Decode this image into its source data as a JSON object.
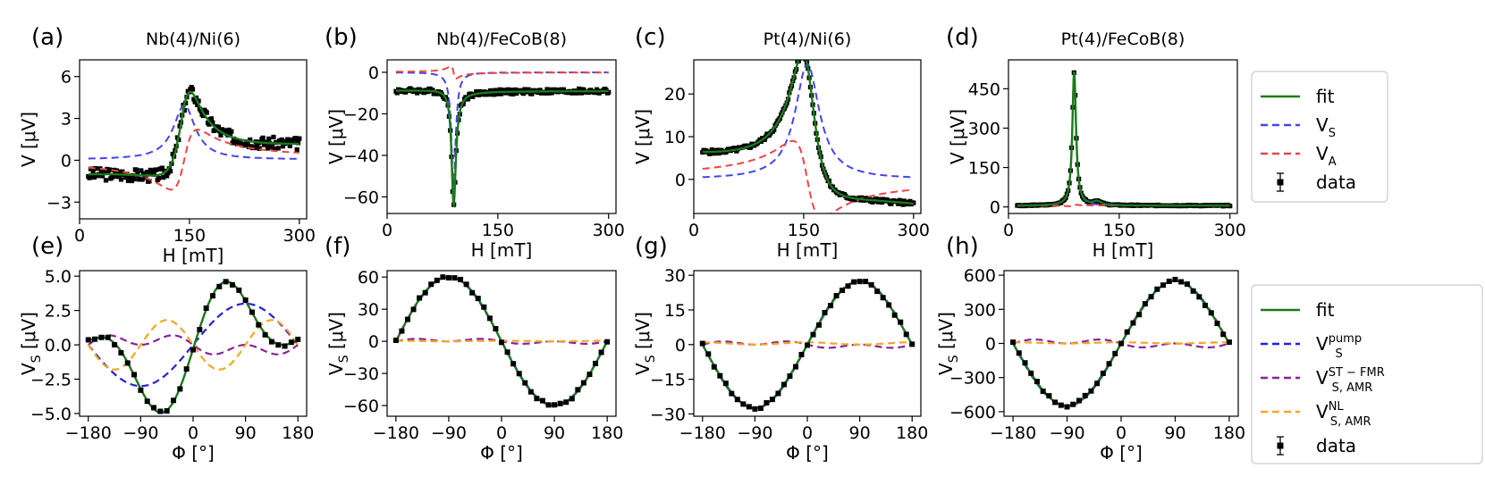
{
  "colors": {
    "fit": "#1a7a1a",
    "vs": "#4444ee",
    "va": "#ee4444",
    "pump": "#2222dd",
    "st": "#882299",
    "nl": "#f5a623",
    "data": "#000000"
  },
  "legend_top": {
    "items": [
      {
        "key": "fit",
        "label": "fit"
      },
      {
        "key": "vs",
        "label": "V",
        "sub": "S"
      },
      {
        "key": "va",
        "label": "V",
        "sub": "A"
      },
      {
        "key": "data",
        "label": "data"
      }
    ]
  },
  "legend_bottom": {
    "items": [
      {
        "key": "fit",
        "label": "fit"
      },
      {
        "key": "pump",
        "label": "V",
        "sup": "pump",
        "sub": "S"
      },
      {
        "key": "st",
        "label": "V",
        "sup": "ST − FMR",
        "sub": "S, AMR"
      },
      {
        "key": "nl",
        "label": "V",
        "sup": "NL",
        "sub": "S, AMR"
      },
      {
        "key": "data",
        "label": "data"
      }
    ]
  },
  "chart_data": [
    {
      "id": "a",
      "panel_label": "(a)",
      "title": "Nb(4)/Ni(6)",
      "type": "line",
      "xlabel": "H [mT]",
      "ylabel": "V [μV]",
      "xlim": [
        0,
        310
      ],
      "ylim": [
        -4.2,
        7.2
      ],
      "xticks": [
        0,
        150,
        300
      ],
      "xticklabels": [
        "0",
        "150",
        "300"
      ],
      "yticks": [
        -3,
        0,
        3,
        6
      ],
      "yticklabels": [
        "−3",
        "0",
        "3",
        "6"
      ],
      "model": {
        "kind": "lorentz",
        "H0": 143,
        "dH": 18,
        "S": 3.9,
        "A": -4.3,
        "off": 0.05,
        "slope": 0.004,
        "xmin": 12,
        "xmax": 300
      },
      "data_noise": 0.45
    },
    {
      "id": "b",
      "panel_label": "(b)",
      "title": "Nb(4)/FeCoB(8)",
      "type": "line",
      "xlabel": "H [mT]",
      "ylabel": "V [μV]",
      "xlim": [
        0,
        310
      ],
      "ylim": [
        -68,
        6
      ],
      "xticks": [
        0,
        150,
        300
      ],
      "xticklabels": [
        "0",
        "150",
        "300"
      ],
      "yticks": [
        -60,
        -40,
        -20,
        0
      ],
      "yticklabels": [
        "−60",
        "−40",
        "−20",
        "0"
      ],
      "model": {
        "kind": "lorentz",
        "H0": 90,
        "dH": 3.5,
        "S": -55,
        "A": 6,
        "off": -9,
        "slope": 0,
        "xmin": 12,
        "xmax": 300,
        "sva_offset": 9
      },
      "data_noise": 1.2
    },
    {
      "id": "c",
      "panel_label": "(c)",
      "title": "Pt(4)/Ni(6)",
      "type": "line",
      "xlabel": "H [mT]",
      "ylabel": "V [μV]",
      "xlim": [
        0,
        310
      ],
      "ylim": [
        -8,
        28
      ],
      "xticks": [
        0,
        150,
        300
      ],
      "xticklabels": [
        "0",
        "150",
        "300"
      ],
      "yticks": [
        0,
        10,
        20
      ],
      "yticklabels": [
        "0",
        "10",
        "20"
      ],
      "model": {
        "kind": "lorentz",
        "H0": 155,
        "dH": 20,
        "S": 27,
        "A": 18,
        "off": 0,
        "slope": 0,
        "xmin": 12,
        "xmax": 300,
        "fit_tilt": -0.025
      },
      "data_noise": 0.5
    },
    {
      "id": "d",
      "panel_label": "(d)",
      "title": "Pt(4)/FeCoB(8)",
      "type": "line",
      "xlabel": "H [mT]",
      "ylabel": "V [μV]",
      "xlim": [
        0,
        310
      ],
      "ylim": [
        -25,
        560
      ],
      "xticks": [
        0,
        150,
        300
      ],
      "xticklabels": [
        "0",
        "150",
        "300"
      ],
      "yticks": [
        0,
        150,
        300,
        450
      ],
      "yticklabels": [
        "0",
        "150",
        "300",
        "450"
      ],
      "model": {
        "kind": "lorentz",
        "H0": 89,
        "dH": 3,
        "S": 510,
        "A": -6,
        "off": 5,
        "slope": 0,
        "xmin": 12,
        "xmax": 300,
        "bump": {
          "H0": 120,
          "dH": 6,
          "amp": 14
        }
      },
      "data_noise": 2
    },
    {
      "id": "e",
      "panel_label": "(e)",
      "title": "",
      "type": "line",
      "xlabel": "Φ [°]",
      "ylabel": "V_S [μV]",
      "xlim": [
        -195,
        195
      ],
      "ylim": [
        -5.2,
        5.4
      ],
      "xticks": [
        -180,
        -90,
        0,
        90,
        180
      ],
      "xticklabels": [
        "−180",
        "−90",
        "0",
        "90",
        "180"
      ],
      "yticks": [
        -5,
        -2.5,
        0,
        2.5,
        5
      ],
      "yticklabels": [
        "−5.0",
        "−2.5",
        "0.0",
        "2.5",
        "5.0"
      ],
      "angular": {
        "pump": 3.0,
        "st": 0.9,
        "nl": 1.8
      },
      "data_pts": 33
    },
    {
      "id": "f",
      "panel_label": "(f)",
      "title": "",
      "type": "line",
      "xlabel": "Φ [°]",
      "ylabel": "V_S [μV]",
      "xlim": [
        -195,
        195
      ],
      "ylim": [
        -70,
        66
      ],
      "xticks": [
        -180,
        -90,
        0,
        90,
        180
      ],
      "xticklabels": [
        "−180",
        "−90",
        "0",
        "90",
        "180"
      ],
      "yticks": [
        -60,
        -30,
        0,
        30,
        60
      ],
      "yticklabels": [
        "−60",
        "−30",
        "0",
        "30",
        "60"
      ],
      "angular": {
        "pump": -60,
        "st": 3,
        "nl": 0.5
      },
      "data_pts": 37
    },
    {
      "id": "g",
      "panel_label": "(g)",
      "title": "",
      "type": "line",
      "xlabel": "Φ [°]",
      "ylabel": "V_S [μV]",
      "xlim": [
        -195,
        195
      ],
      "ylim": [
        -31,
        32
      ],
      "xticks": [
        -180,
        -90,
        0,
        90,
        180
      ],
      "xticklabels": [
        "−180",
        "−90",
        "0",
        "90",
        "180"
      ],
      "yticks": [
        -30,
        -15,
        0,
        15,
        30
      ],
      "yticklabels": [
        "−30",
        "−15",
        "0",
        "15",
        "30"
      ],
      "angular": {
        "pump": 27.5,
        "st": 1.8,
        "nl": 1.0
      },
      "data_pts": 37
    },
    {
      "id": "h",
      "panel_label": "(h)",
      "title": "",
      "type": "line",
      "xlabel": "Φ [°]",
      "ylabel": "V_S [μV]",
      "xlim": [
        -195,
        195
      ],
      "ylim": [
        -640,
        640
      ],
      "xticks": [
        -180,
        -90,
        0,
        90,
        180
      ],
      "xticklabels": [
        "−180",
        "−90",
        "0",
        "90",
        "180"
      ],
      "yticks": [
        -600,
        -300,
        0,
        300,
        600
      ],
      "yticklabels": [
        "−600",
        "−300",
        "0",
        "300",
        "600"
      ],
      "angular": {
        "pump": 550,
        "st": 45,
        "nl": 10
      },
      "data_pts": 37
    }
  ]
}
